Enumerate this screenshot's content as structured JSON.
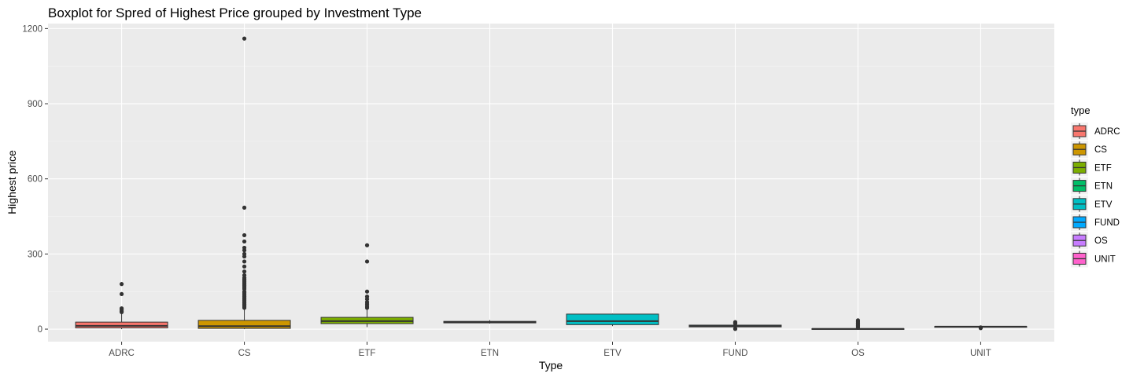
{
  "chart_data": {
    "type": "boxplot",
    "title": "Boxplot for Spred of Highest Price grouped by Investment Type",
    "xlabel": "Type",
    "ylabel": "Highest price",
    "ylim": [
      -50,
      1220
    ],
    "yticks": [
      0,
      300,
      600,
      900,
      1200
    ],
    "grid": true,
    "legend": {
      "title": "type",
      "position": "right"
    },
    "categories": [
      "ADRC",
      "CS",
      "ETF",
      "ETN",
      "ETV",
      "FUND",
      "OS",
      "UNIT"
    ],
    "colors": [
      "#F8766D",
      "#CD9600",
      "#7CAE00",
      "#00BE67",
      "#00BFC4",
      "#00A9FF",
      "#C77CFF",
      "#FF61CC"
    ],
    "boxes": [
      {
        "type": "ADRC",
        "lower_whisker": 0,
        "q1": 5,
        "median": 13,
        "q3": 28,
        "upper_whisker": 65,
        "outliers": [
          68,
          72,
          78,
          83,
          140,
          180
        ]
      },
      {
        "type": "CS",
        "lower_whisker": 0,
        "q1": 3,
        "median": 12,
        "q3": 35,
        "upper_whisker": 82,
        "outliers": [
          85,
          90,
          95,
          100,
          105,
          110,
          115,
          120,
          125,
          130,
          135,
          140,
          145,
          150,
          160,
          165,
          170,
          175,
          180,
          185,
          190,
          195,
          200,
          205,
          215,
          230,
          250,
          270,
          290,
          300,
          315,
          325,
          350,
          375,
          485,
          1160
        ]
      },
      {
        "type": "ETF",
        "lower_whisker": 8,
        "q1": 22,
        "median": 32,
        "q3": 47,
        "upper_whisker": 80,
        "outliers": [
          85,
          92,
          100,
          108,
          120,
          130,
          150,
          270,
          335
        ]
      },
      {
        "type": "ETN",
        "lower_whisker": 22,
        "q1": 25,
        "median": 28,
        "q3": 31,
        "upper_whisker": 36,
        "outliers": []
      },
      {
        "type": "ETV",
        "lower_whisker": 12,
        "q1": 18,
        "median": 32,
        "q3": 60,
        "upper_whisker": 62,
        "outliers": []
      },
      {
        "type": "FUND",
        "lower_whisker": 6,
        "q1": 9,
        "median": 12,
        "q3": 16,
        "upper_whisker": 20,
        "outliers": [
          1,
          2,
          22,
          25,
          28
        ]
      },
      {
        "type": "OS",
        "lower_whisker": 0,
        "q1": 0.5,
        "median": 1,
        "q3": 2,
        "upper_whisker": 4,
        "outliers": [
          5,
          10,
          15,
          20,
          25,
          30,
          35
        ]
      },
      {
        "type": "UNIT",
        "lower_whisker": 8,
        "q1": 9.5,
        "median": 10,
        "q3": 10.5,
        "upper_whisker": 11,
        "outliers": [
          4,
          7
        ]
      }
    ]
  }
}
